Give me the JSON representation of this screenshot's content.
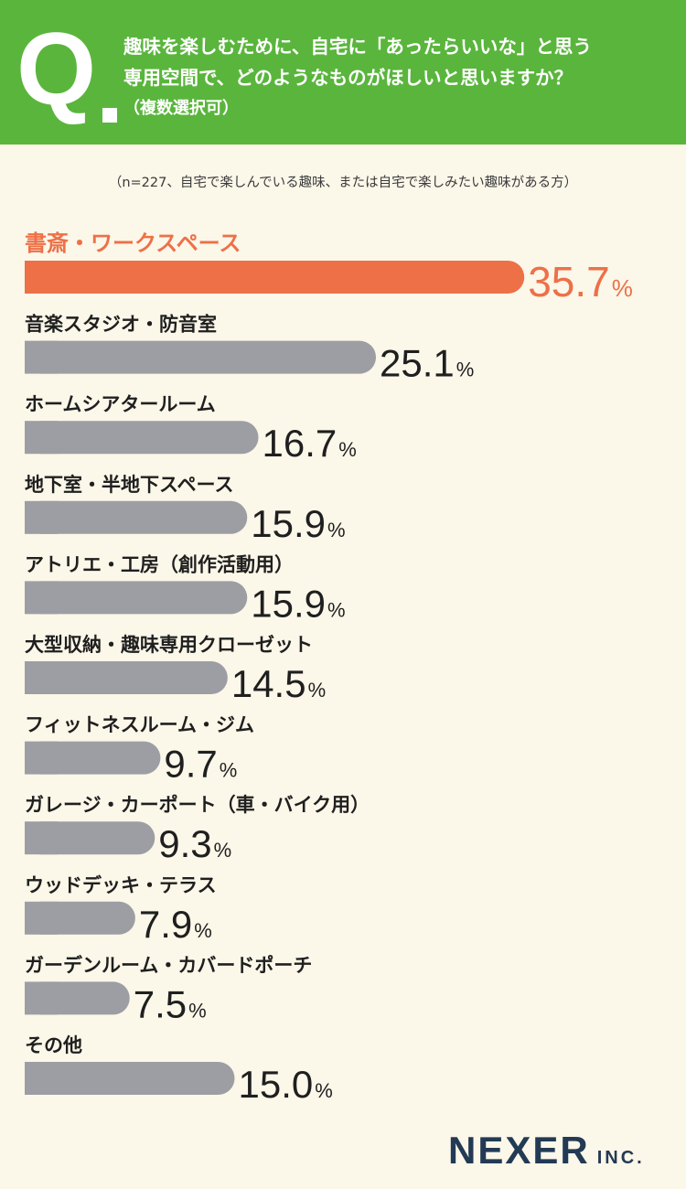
{
  "header": {
    "q_letter": "Q",
    "question_line1": "趣味を楽しむために、自宅に「あったらいいな」と思う",
    "question_line2": "専用空間で、どのようなものがほしいと思いますか？",
    "question_note": "（複数選択可）"
  },
  "sample_note": "（n=227、自宅で楽しんでいる趣味、または自宅で楽しみたい趣味がある方）",
  "colors": {
    "header_bg": "#5ab53d",
    "highlight": "#ee7047",
    "bar_default": "#9d9ea3",
    "text": "#1f1f1f",
    "logo": "#233a54",
    "background": "#fbf7e9"
  },
  "chart_data": {
    "type": "bar",
    "orientation": "horizontal",
    "unit": "%",
    "categories": [
      "書斎・ワークスペース",
      "音楽スタジオ・防音室",
      "ホームシアタールーム",
      "地下室・半地下スペース",
      "アトリエ・工房（創作活動用）",
      "大型収納・趣味専用クローゼット",
      "フィットネスルーム・ジム",
      "ガレージ・カーポート（車・バイク用）",
      "ウッドデッキ・テラス",
      "ガーデンルーム・カバードポーチ",
      "その他"
    ],
    "values": [
      35.7,
      25.1,
      16.7,
      15.9,
      15.9,
      14.5,
      9.7,
      9.3,
      7.9,
      7.5,
      15.0
    ],
    "value_labels": [
      "35.7",
      "25.1",
      "16.7",
      "15.9",
      "15.9",
      "14.5",
      "9.7",
      "9.3",
      "7.9",
      "7.5",
      "15.0"
    ],
    "highlight_index": 0
  },
  "logo": {
    "main": "NEXER",
    "sub": "INC."
  }
}
